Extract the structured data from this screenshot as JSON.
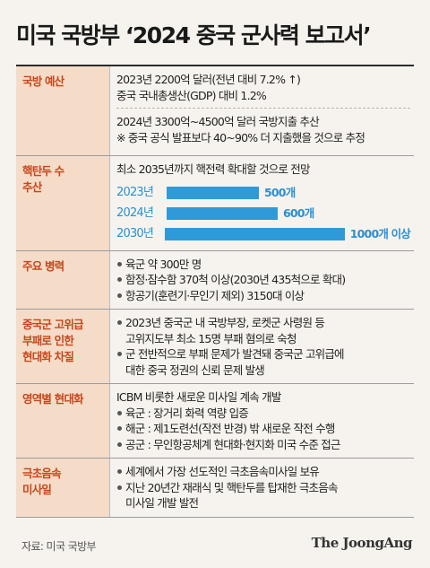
{
  "title": "미국 국방부 ‘2024 중국 군사력 보고서’",
  "rows": {
    "budget": {
      "label": "국방 예산",
      "lines1": [
        "2023년 2200억 달러(전년 대비 7.2% ↑)",
        "중국 국내총생산(GDP) 대비 1.2%"
      ],
      "lines2": [
        "2024년 3300억~4500억 달러 국방지출 추산",
        "※ 중국 공식 발표보다 40~90% 더 지출했을 것으로 추정"
      ]
    },
    "nuclear": {
      "label1": "핵탄두 수",
      "label2": "추산",
      "headline": "최소 2035년까지 핵전력 확대할 것으로 전망"
    },
    "forces": {
      "label": "주요 병력",
      "items": [
        "육군 약 300만 명",
        "함정·잠수함 370척 이상(2030년 435척으로 확대)",
        "항공기(훈련기·무인기 제외) 3150대 이상"
      ]
    },
    "corruption": {
      "label1": "중국군 고위급",
      "label2": "부패로 인한",
      "label3": "현대화 차질",
      "item1_l1": "2023년 중국군 내 국방부장, 로켓군 사령원 등",
      "item1_l2": "고위지도부 최소 15명 부패 혐의로 숙청",
      "item2_l1": "군 전반적으로 부패 문제가 발견돼 중국군 고위급에",
      "item2_l2": "대한 중국 정권의 신뢰 문제 발생"
    },
    "modern": {
      "label": "영역별 현대화",
      "headline": "ICBM 비롯한 새로운 미사일 계속 개발",
      "items": [
        "육군 : 장거리 화력 역량 입증",
        "해군 : 제1도련선(작전 반경) 밖 새로운 작전 수행",
        "공군 : 무인항공체계 현대화·현지화 미국 수준 접근"
      ]
    },
    "hypersonic": {
      "label1": "극초음속",
      "label2": "미사일",
      "item1": "세계에서 가장 선도적인 극초음속미사일 보유",
      "item2_l1": "지난 20년간 재래식 및 핵탄두를 탑재한 극초음속",
      "item2_l2": "미사일 개발 발전"
    }
  },
  "chart_data": {
    "type": "bar",
    "orientation": "horizontal",
    "categories": [
      "2023년",
      "2024년",
      "2030년"
    ],
    "values": [
      500,
      600,
      1000
    ],
    "value_labels": [
      "500개",
      "600개",
      "1000개 이상"
    ],
    "bar_color": "#2f9ad8",
    "xlim": [
      0,
      1000
    ]
  },
  "source": "자료: 미국 국방부",
  "logo": "The JoongAng",
  "colors": {
    "label_bg": "#f4dcc8",
    "label_text": "#c8461a",
    "bar": "#2f9ad8",
    "background": "#f6f3ee"
  }
}
